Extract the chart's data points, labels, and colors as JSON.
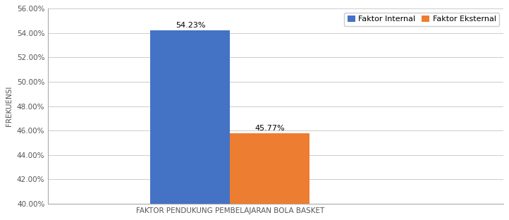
{
  "categories": [
    "Faktor Internal",
    "Faktor Eksternal"
  ],
  "values": [
    54.23,
    45.77
  ],
  "bar_colors": [
    "#4472C4",
    "#ED7D31"
  ],
  "labels": [
    "54.23%",
    "45.77%"
  ],
  "xlabel": "FAKTOR PENDUKUNG PEMBELAJARAN BOLA BASKET",
  "ylabel": "FREKUENSI",
  "ylim": [
    40.0,
    56.0
  ],
  "yticks": [
    40.0,
    42.0,
    44.0,
    46.0,
    48.0,
    50.0,
    52.0,
    54.0,
    56.0
  ],
  "legend_labels": [
    "Faktor Internal",
    "Faktor Eksternal"
  ],
  "legend_colors": [
    "#4472C4",
    "#ED7D31"
  ],
  "background_color": "#FFFFFF",
  "bar_width": 0.35,
  "axis_fontsize": 7.5,
  "label_fontsize": 8,
  "legend_fontsize": 8
}
